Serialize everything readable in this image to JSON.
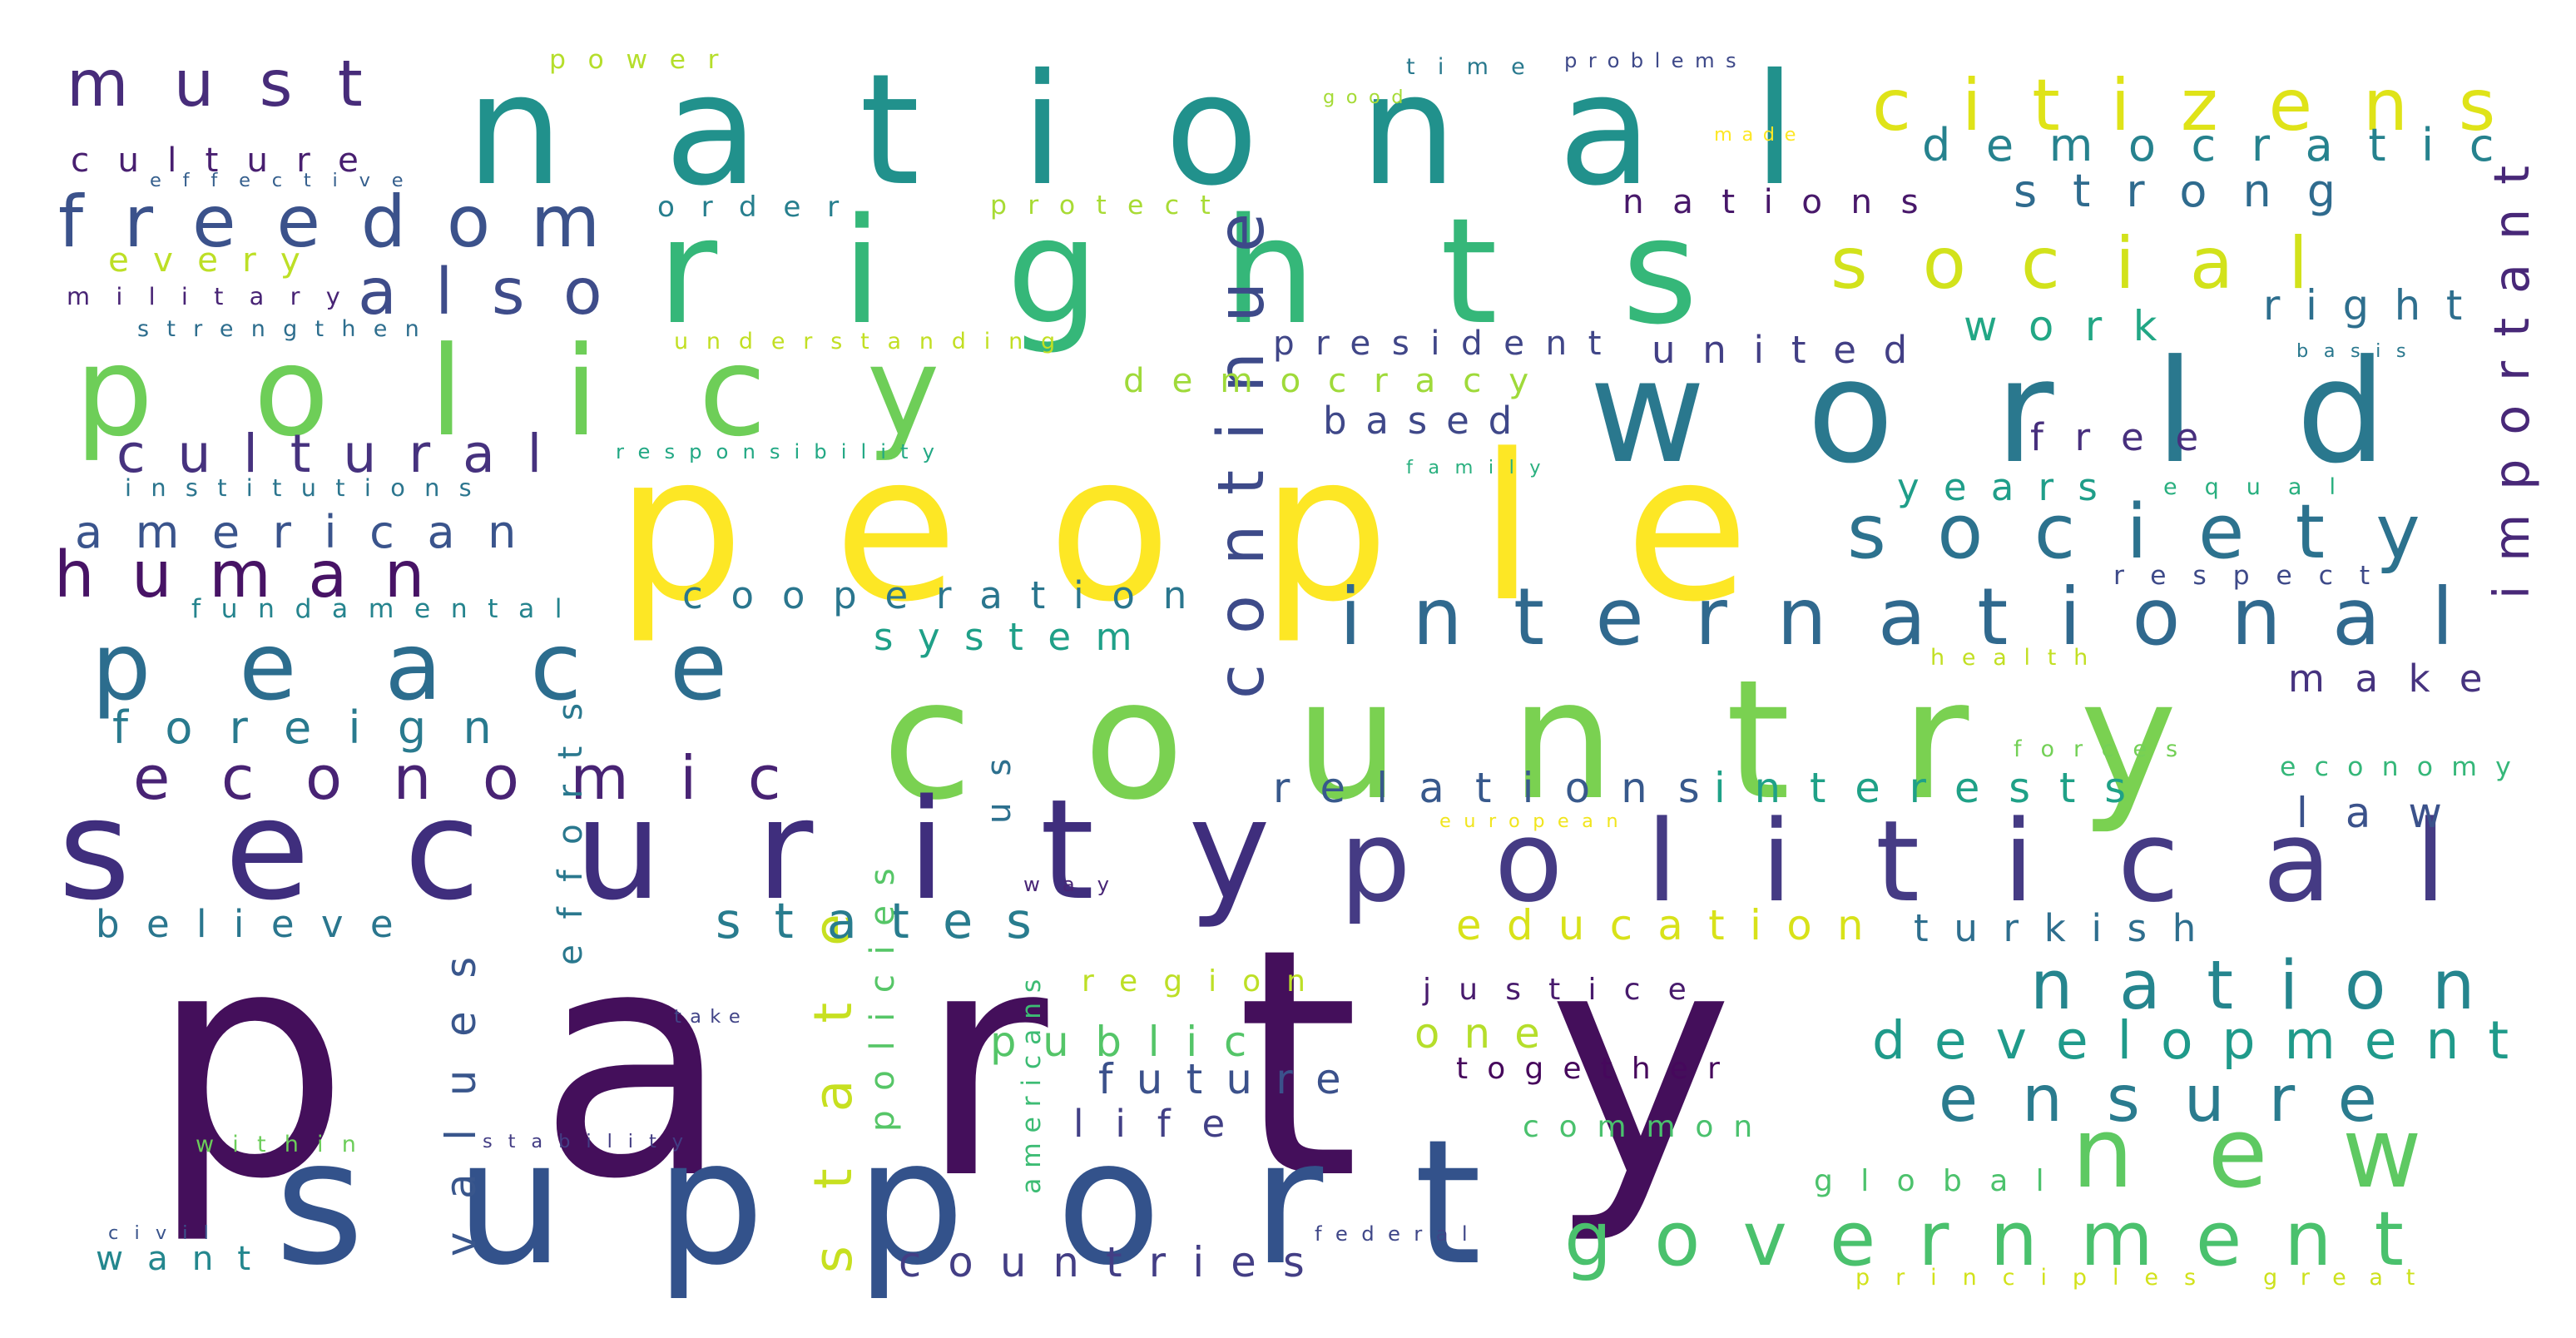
{
  "words": [
    {
      "text": "party",
      "color": "#440f5b"
    },
    {
      "text": "people",
      "color": "#fde725"
    },
    {
      "text": "national",
      "color": "#21918c"
    },
    {
      "text": "country",
      "color": "#7ad151"
    },
    {
      "text": "security",
      "color": "#3f2e7d"
    },
    {
      "text": "rights",
      "color": "#35b779"
    },
    {
      "text": "support",
      "color": "#33528b"
    },
    {
      "text": "political",
      "color": "#453b84"
    },
    {
      "text": "world",
      "color": "#2a788e"
    },
    {
      "text": "policy",
      "color": "#6ece58"
    },
    {
      "text": "peace",
      "color": "#2c6d8e"
    },
    {
      "text": "new",
      "color": "#5ec962"
    },
    {
      "text": "continue",
      "color": "#3d4a89"
    },
    {
      "text": "international",
      "color": "#30698e"
    },
    {
      "text": "society",
      "color": "#2c728e"
    },
    {
      "text": "citizens",
      "color": "#dfe318"
    },
    {
      "text": "social",
      "color": "#d2e21b"
    },
    {
      "text": "economic",
      "color": "#482374"
    },
    {
      "text": "state",
      "color": "#c7e020"
    },
    {
      "text": "freedom",
      "color": "#3b528b"
    },
    {
      "text": "government",
      "color": "#4ac16d"
    },
    {
      "text": "nation",
      "color": "#25858e"
    },
    {
      "text": "ensure",
      "color": "#2a7b8e"
    },
    {
      "text": "human",
      "color": "#471365"
    },
    {
      "text": "must",
      "color": "#472c7a"
    },
    {
      "text": "also",
      "color": "#3e4c8a"
    },
    {
      "text": "cultural",
      "color": "#46327e"
    },
    {
      "text": "development",
      "color": "#1f9a8a"
    },
    {
      "text": "values",
      "color": "#39568c"
    },
    {
      "text": "states",
      "color": "#287c8e"
    },
    {
      "text": "american",
      "color": "#3a548c"
    },
    {
      "text": "relations",
      "color": "#38598c"
    },
    {
      "text": "interests",
      "color": "#1fa187"
    },
    {
      "text": "democratic",
      "color": "#26828e"
    },
    {
      "text": "important",
      "color": "#482878"
    },
    {
      "text": "strong",
      "color": "#2f6b8e"
    },
    {
      "text": "foreign",
      "color": "#297a8e"
    },
    {
      "text": "countries",
      "color": "#433e85"
    },
    {
      "text": "cooperation",
      "color": "#2a768e"
    },
    {
      "text": "education",
      "color": "#d8e219"
    },
    {
      "text": "nations",
      "color": "#48186a"
    },
    {
      "text": "president",
      "color": "#404688"
    },
    {
      "text": "united",
      "color": "#423f85"
    },
    {
      "text": "right",
      "color": "#2e6f8e"
    },
    {
      "text": "work",
      "color": "#22a785"
    },
    {
      "text": "turkish",
      "color": "#2e6e8e"
    },
    {
      "text": "future",
      "color": "#3b518b"
    },
    {
      "text": "public",
      "color": "#54c568"
    },
    {
      "text": "democracy",
      "color": "#9fda3a"
    },
    {
      "text": "years",
      "color": "#1f9e89"
    },
    {
      "text": "based",
      "color": "#3f4889"
    },
    {
      "text": "make",
      "color": "#46337f"
    },
    {
      "text": "law",
      "color": "#3b528b"
    },
    {
      "text": "believe",
      "color": "#2a768e"
    },
    {
      "text": "system",
      "color": "#1fa088"
    },
    {
      "text": "culture",
      "color": "#481f70"
    },
    {
      "text": "free",
      "color": "#472f7d"
    },
    {
      "text": "life",
      "color": "#424086"
    },
    {
      "text": "one",
      "color": "#b5de2b"
    },
    {
      "text": "us",
      "color": "#2d708e"
    },
    {
      "text": "want",
      "color": "#24878e"
    },
    {
      "text": "every",
      "color": "#bddf26"
    },
    {
      "text": "justice",
      "color": "#481b6d"
    },
    {
      "text": "together",
      "color": "#46085c"
    },
    {
      "text": "global",
      "color": "#4cc26c"
    },
    {
      "text": "common",
      "color": "#4ac16d"
    },
    {
      "text": "region",
      "color": "#bddf26"
    },
    {
      "text": "policies",
      "color": "#56c667"
    },
    {
      "text": "efforts",
      "color": "#2a788e"
    },
    {
      "text": "fundamental",
      "color": "#25848e"
    },
    {
      "text": "order",
      "color": "#277f8e"
    },
    {
      "text": "protect",
      "color": "#a8db34"
    },
    {
      "text": "power",
      "color": "#b5de2b"
    },
    {
      "text": "military",
      "color": "#482475"
    },
    {
      "text": "institutions",
      "color": "#2b758e"
    },
    {
      "text": "respect",
      "color": "#3e4a89"
    },
    {
      "text": "economy",
      "color": "#35b779"
    },
    {
      "text": "strengthen",
      "color": "#2e6e8e"
    },
    {
      "text": "understanding",
      "color": "#c2df23"
    },
    {
      "text": "responsibility",
      "color": "#22a884"
    },
    {
      "text": "within",
      "color": "#6ccd5a"
    },
    {
      "text": "forces",
      "color": "#73d056"
    },
    {
      "text": "health",
      "color": "#c2df23"
    },
    {
      "text": "principles",
      "color": "#d2e21b"
    },
    {
      "text": "great",
      "color": "#cde11d"
    },
    {
      "text": "equal",
      "color": "#29af7f"
    },
    {
      "text": "time",
      "color": "#29798e"
    },
    {
      "text": "problems",
      "color": "#3e4989"
    },
    {
      "text": "effective",
      "color": "#355f8d"
    },
    {
      "text": "stability",
      "color": "#433d84"
    },
    {
      "text": "federal",
      "color": "#3f4788"
    },
    {
      "text": "way",
      "color": "#482576"
    },
    {
      "text": "civil",
      "color": "#3a548c"
    },
    {
      "text": "basis",
      "color": "#2a788e"
    },
    {
      "text": "family",
      "color": "#2ab07f"
    },
    {
      "text": "americans",
      "color": "#3dbc74"
    },
    {
      "text": "take",
      "color": "#414487"
    },
    {
      "text": "good",
      "color": "#a5db36"
    },
    {
      "text": "made",
      "color": "#fde725"
    },
    {
      "text": "european",
      "color": "#f1e51d"
    }
  ]
}
